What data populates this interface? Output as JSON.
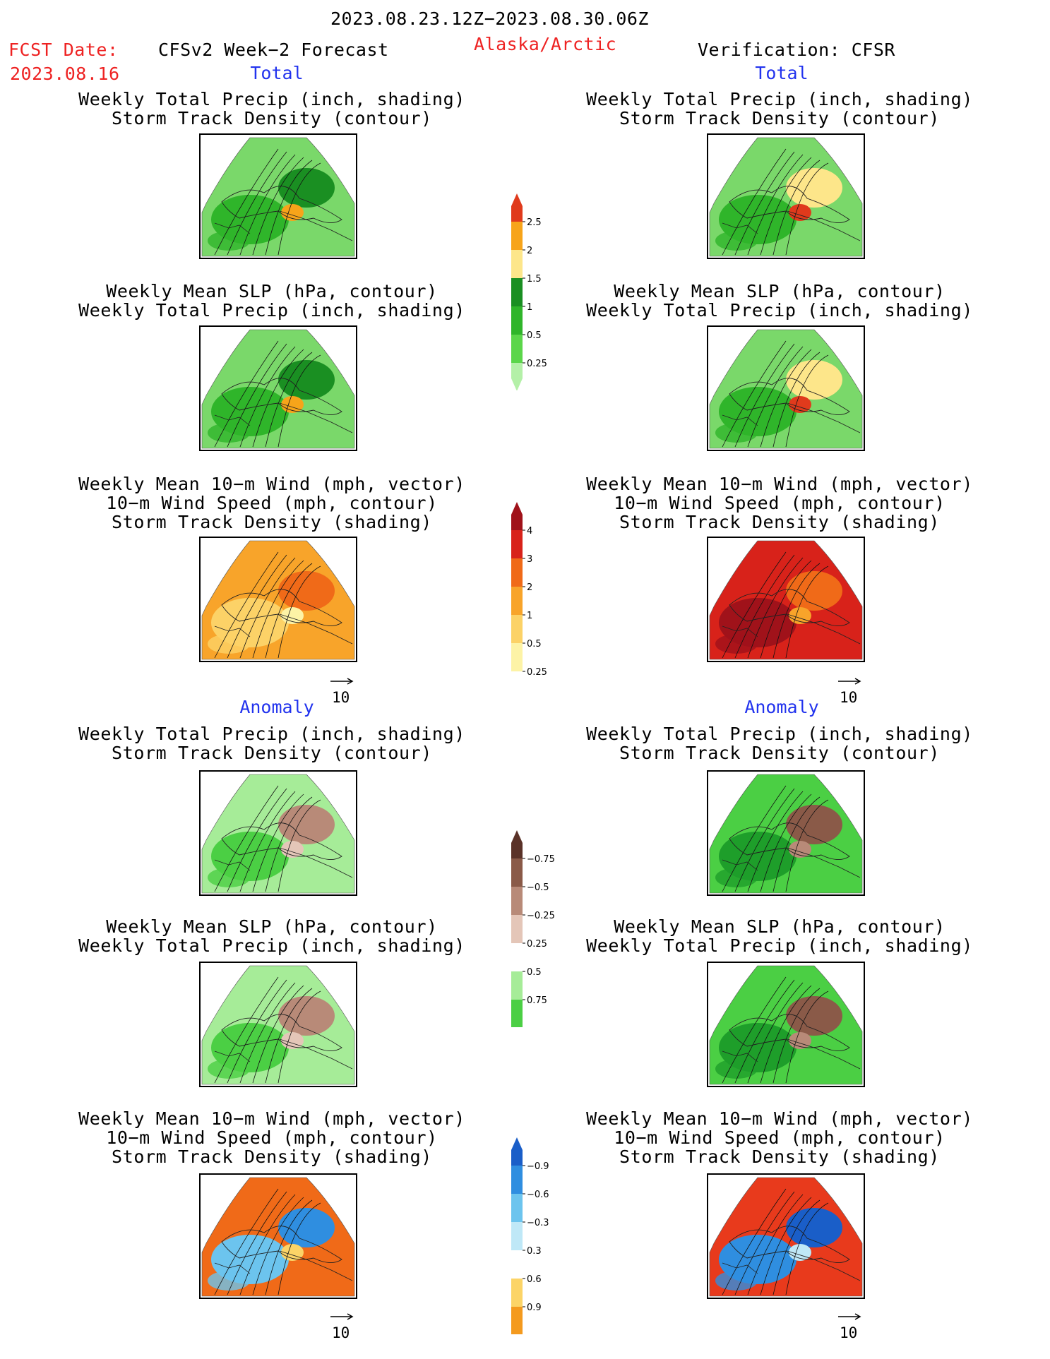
{
  "header": {
    "period": "2023.08.23.12Z−2023.08.30.06Z",
    "fcst_label": "FCST Date:",
    "fcst_date": "2023.08.16",
    "model": "CFSv2 Week−2 Forecast",
    "region": "Alaska/Arctic",
    "verification": "Verification: CFSR"
  },
  "sections": {
    "total_left": "Total",
    "total_right": "Total",
    "anomaly_left": "Anomaly",
    "anomaly_right": "Anomaly"
  },
  "titles": {
    "precip_storm": [
      "Weekly Total Precip (inch, shading)",
      "Storm Track Density (contour)"
    ],
    "slp_precip": [
      "Weekly Mean SLP (hPa, contour)",
      "Weekly Total Precip (inch, shading)"
    ],
    "wind": [
      "Weekly Mean 10−m Wind (mph, vector)",
      "10−m Wind Speed (mph, contour)",
      "Storm Track Density (shading)"
    ]
  },
  "vector_ref": "10",
  "colorbars": {
    "precip_total": {
      "labels": [
        "0.25",
        "0.5",
        "1",
        "1.5",
        "2",
        "2.5"
      ],
      "colors": [
        "#b4f0a8",
        "#5bd64a",
        "#2fb52a",
        "#1a8f22",
        "#fde68a",
        "#f7a41a",
        "#e03a1c"
      ]
    },
    "storm_total": {
      "labels": [
        "0.25",
        "0.5",
        "1",
        "2",
        "3",
        "4"
      ],
      "colors": [
        "#ffffff",
        "#fdf3a6",
        "#fcd267",
        "#f8a42a",
        "#f06a18",
        "#d8221a",
        "#a0121a"
      ]
    },
    "precip_anom": {
      "labels": [
        "0.75",
        "0.5",
        "0.25",
        "−0.25",
        "−0.5",
        "−0.75"
      ],
      "colors": [
        "#1e9e2a",
        "#4bcf44",
        "#a6ec98",
        "#ffffff",
        "#e4c6b8",
        "#b88a78",
        "#8a5a48",
        "#5a3228"
      ]
    },
    "storm_anom": {
      "labels": [
        "0.9",
        "0.6",
        "0.3",
        "−0.3",
        "−0.6",
        "−0.9"
      ],
      "colors": [
        "#e83a1c",
        "#f49a1e",
        "#fcd467",
        "#ffffff",
        "#bfe8f7",
        "#6cc4ee",
        "#2f8ee0",
        "#1a5ec8"
      ]
    }
  },
  "maps": [
    {
      "id": "fcst-total-precip-storm",
      "shade_colors": [
        "#7ad86a",
        "#2fb52a",
        "#1a8f22",
        "#f7a41a"
      ]
    },
    {
      "id": "obs-total-precip-storm",
      "shade_colors": [
        "#7ad86a",
        "#2fb52a",
        "#fde68a",
        "#e03a1c"
      ]
    },
    {
      "id": "fcst-total-slp-precip",
      "shade_colors": [
        "#7ad86a",
        "#2fb52a",
        "#1a8f22",
        "#f7a41a"
      ]
    },
    {
      "id": "obs-total-slp-precip",
      "shade_colors": [
        "#7ad86a",
        "#2fb52a",
        "#fde68a",
        "#e03a1c"
      ]
    },
    {
      "id": "fcst-total-wind",
      "shade_colors": [
        "#f8a42a",
        "#fcd267",
        "#f06a18",
        "#fdf3a6"
      ]
    },
    {
      "id": "obs-total-wind",
      "shade_colors": [
        "#d8221a",
        "#a0121a",
        "#f06a18",
        "#f8a42a"
      ]
    },
    {
      "id": "fcst-anom-precip-storm",
      "shade_colors": [
        "#a6ec98",
        "#4bcf44",
        "#b88a78",
        "#e4c6b8"
      ]
    },
    {
      "id": "obs-anom-precip-storm",
      "shade_colors": [
        "#4bcf44",
        "#1e9e2a",
        "#8a5a48",
        "#b88a78"
      ]
    },
    {
      "id": "fcst-anom-slp-precip",
      "shade_colors": [
        "#a6ec98",
        "#4bcf44",
        "#b88a78",
        "#e4c6b8"
      ]
    },
    {
      "id": "obs-anom-slp-precip",
      "shade_colors": [
        "#4bcf44",
        "#1e9e2a",
        "#8a5a48",
        "#b88a78"
      ]
    },
    {
      "id": "fcst-anom-wind",
      "shade_colors": [
        "#f06a18",
        "#6cc4ee",
        "#2f8ee0",
        "#fcd467"
      ]
    },
    {
      "id": "obs-anom-wind",
      "shade_colors": [
        "#e83a1c",
        "#2f8ee0",
        "#1a5ec8",
        "#bfe8f7"
      ]
    }
  ]
}
